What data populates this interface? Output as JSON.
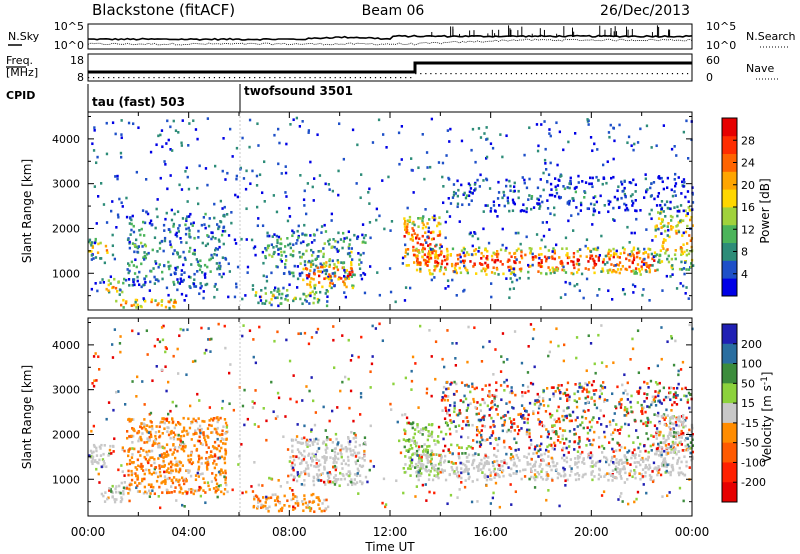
{
  "header": {
    "station": "Blackstone (fitACF)",
    "beam": "Beam 06",
    "date": "26/Dec/2013"
  },
  "panels": {
    "nsky": {
      "label": "N.Sky",
      "top_tick": "10^5",
      "bottom_tick": "10^0"
    },
    "nsearch": {
      "label": "N.Search",
      "top_tick": "10^5",
      "bottom_tick": "10^0"
    },
    "freq": {
      "label_line1": "Freq.",
      "label_line2": "[MHz]",
      "ticks": [
        "18",
        "8"
      ]
    },
    "nave": {
      "label": "Nave",
      "ticks": [
        "60",
        "0"
      ]
    },
    "cpid": {
      "label": "CPID",
      "modes": [
        "tau (fast) 503",
        "twofsound 3501"
      ]
    }
  },
  "chart_data": [
    {
      "type": "heatmap",
      "panel": "power",
      "ylabel": "Slant Range [km]",
      "xlabel": "",
      "x_range_hours": [
        0,
        24
      ],
      "ylim": [
        180,
        4600
      ],
      "yticks": [
        "1000",
        "2000",
        "3000",
        "4000"
      ],
      "xticks": [
        0,
        2,
        4,
        6,
        8,
        10,
        12,
        14,
        16,
        18,
        20,
        22,
        24
      ],
      "colorbar": {
        "label": "Power [dB]",
        "ticks": [
          "4",
          "8",
          "12",
          "16",
          "20",
          "24",
          "28"
        ],
        "range": [
          0,
          30
        ],
        "colors": [
          "#0000e6",
          "#1e50c8",
          "#2d8c78",
          "#4bb45a",
          "#a0d23c",
          "#ffd700",
          "#ffa500",
          "#ff6400",
          "#ff2d00",
          "#e60000"
        ]
      },
      "echo_regions": [
        {
          "t": [
            0.0,
            0.8
          ],
          "range_km": [
            1350,
            1800
          ],
          "level": 0.55
        },
        {
          "t": [
            0.5,
            1.5
          ],
          "range_km": [
            550,
            900
          ],
          "level": 0.55
        },
        {
          "t": [
            0.7,
            3.5
          ],
          "range_km": [
            250,
            450
          ],
          "level": 0.7
        },
        {
          "t": [
            1.5,
            5.5
          ],
          "range_km": [
            700,
            2400
          ],
          "level": 0.25
        },
        {
          "t": [
            6.5,
            9.5
          ],
          "range_km": [
            300,
            700
          ],
          "level": 0.45
        },
        {
          "t": [
            7.0,
            11.0
          ],
          "range_km": [
            900,
            2000
          ],
          "level": 0.3
        },
        {
          "t": [
            8.5,
            10.5
          ],
          "range_km": [
            700,
            1300
          ],
          "level": 0.75
        },
        {
          "t": [
            12.5,
            14.0
          ],
          "range_km": [
            1100,
            2300
          ],
          "level": 0.75
        },
        {
          "t": [
            13.0,
            22.5
          ],
          "range_km": [
            1000,
            1600
          ],
          "level": 0.8
        },
        {
          "t": [
            22.5,
            24.0
          ],
          "range_km": [
            1100,
            2500
          ],
          "level": 0.6
        },
        {
          "t": [
            14.0,
            24.0
          ],
          "range_km": [
            2400,
            3200
          ],
          "level": 0.15
        }
      ]
    },
    {
      "type": "heatmap",
      "panel": "velocity",
      "ylabel": "Slant Range [km]",
      "xlabel": "Time UT",
      "x_range_hours": [
        0,
        24
      ],
      "ylim": [
        180,
        4600
      ],
      "yticks": [
        "1000",
        "2000",
        "3000",
        "4000"
      ],
      "xticks": [
        0,
        2,
        4,
        6,
        8,
        10,
        12,
        14,
        16,
        18,
        20,
        22,
        24
      ],
      "xtick_labels": [
        "00:00",
        "04:00",
        "08:00",
        "12:00",
        "16:00",
        "20:00",
        "00:00"
      ],
      "colorbar": {
        "label": "Velocity [m s^-1]",
        "ticks": [
          "200",
          "100",
          "50",
          "15",
          "-15",
          "-50",
          "-100",
          "-200"
        ],
        "range": [
          -250,
          250
        ],
        "colors": [
          "#2020b4",
          "#2a6ea0",
          "#3c8c3c",
          "#8cd23c",
          "#c8c8c8",
          "#ff8c00",
          "#ff5a00",
          "#ff2000",
          "#e60000"
        ]
      },
      "echo_regions": [
        {
          "t": [
            0.0,
            1.0
          ],
          "range_km": [
            1300,
            1800
          ],
          "kind": "ground"
        },
        {
          "t": [
            0.5,
            1.5
          ],
          "range_km": [
            500,
            900
          ],
          "kind": "ground"
        },
        {
          "t": [
            1.5,
            5.5
          ],
          "range_km": [
            700,
            2400
          ],
          "kind": "negative"
        },
        {
          "t": [
            6.5,
            9.5
          ],
          "range_km": [
            300,
            700
          ],
          "kind": "negative"
        },
        {
          "t": [
            8.0,
            11.0
          ],
          "range_km": [
            900,
            2000
          ],
          "kind": "ground"
        },
        {
          "t": [
            12.5,
            14.0
          ],
          "range_km": [
            1100,
            2300
          ],
          "kind": "positive"
        },
        {
          "t": [
            13.0,
            22.5
          ],
          "range_km": [
            1000,
            1600
          ],
          "kind": "ground"
        },
        {
          "t": [
            14.0,
            24.0
          ],
          "range_km": [
            1600,
            3200
          ],
          "kind": "mixed"
        },
        {
          "t": [
            22.5,
            24.0
          ],
          "range_km": [
            1100,
            2500
          ],
          "kind": "ground"
        }
      ]
    }
  ]
}
